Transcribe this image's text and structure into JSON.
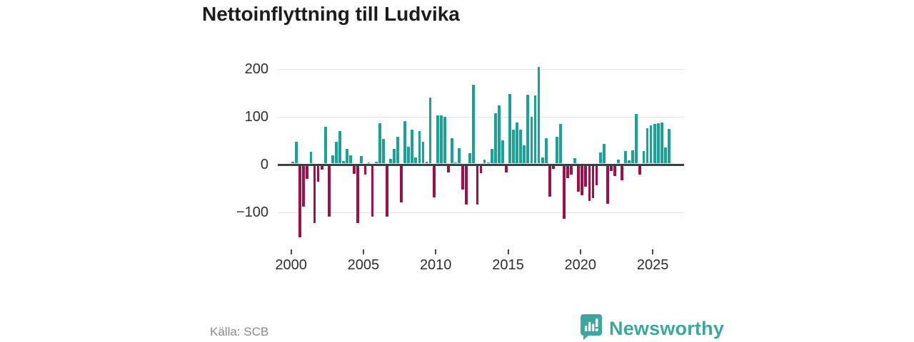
{
  "title": "Nettoinflyttning till Ludvika",
  "source": "Källa: SCB",
  "branding": {
    "name": "Newsworthy",
    "color": "#3aa7a1",
    "icon": "bar-chart-speech-bubble-icon"
  },
  "colors": {
    "positive": "#16a49a",
    "negative": "#a30d49",
    "grid": "#e4e4e4",
    "axis": "#3f3f3f",
    "tick_text": "#2e2e2e"
  },
  "chart_data": {
    "type": "bar",
    "title": "Nettoinflyttning till Ludvika",
    "xlabel": "",
    "ylabel": "",
    "frequency": "quarterly",
    "start_period": "2000Q1",
    "end_period": "2026Q1",
    "grid": true,
    "ylim": [
      -160,
      215
    ],
    "x_tick_years": [
      2000,
      2005,
      2010,
      2015,
      2020,
      2025
    ],
    "y_ticks": [
      {
        "label": "200",
        "value": 200
      },
      {
        "label": "100",
        "value": 100
      },
      {
        "label": "0",
        "value": 0
      },
      {
        "label": "−100",
        "value": -100
      }
    ],
    "series": [
      {
        "name": "Nettoinflyttning",
        "values": [
          3,
          45,
          -150,
          -85,
          -27,
          24,
          -119,
          -34,
          -8,
          76,
          -106,
          17,
          45,
          67,
          5,
          31,
          17,
          -17,
          -119,
          15,
          -19,
          2,
          -106,
          3,
          84,
          51,
          -106,
          10,
          30,
          56,
          -76,
          88,
          35,
          70,
          13,
          68,
          46,
          4,
          138,
          -66,
          101,
          101,
          97,
          -14,
          53,
          2,
          32,
          -50,
          -81,
          21,
          165,
          -81,
          -16,
          8,
          2,
          31,
          105,
          121,
          48,
          -14,
          145,
          71,
          85,
          71,
          38,
          143,
          98,
          142,
          202,
          12,
          53,
          -64,
          -6,
          56,
          83,
          -111,
          -26,
          -19,
          11,
          -54,
          -61,
          -44,
          -74,
          -67,
          -41,
          23,
          41,
          -79,
          -11,
          -21,
          8,
          -31,
          26,
          6,
          28,
          104,
          -19,
          26,
          74,
          80,
          82,
          84,
          86,
          33,
          72
        ]
      }
    ]
  }
}
